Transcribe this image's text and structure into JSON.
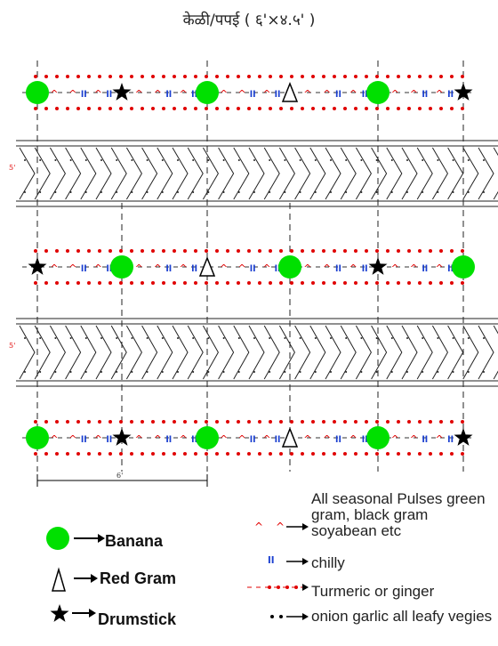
{
  "title": "केळी/पपई ( ६'×४.५' )",
  "width_label": "5'",
  "spacing_label": "6'",
  "legend_left": {
    "banana": "Banana",
    "red_gram": "Red Gram",
    "drumstick": "Drumstick"
  },
  "legend_right": {
    "pulses": "All seasonal Pulses green gram, black gram soyabean etc",
    "chilly": "chilly",
    "turmeric": "Turmeric or ginger",
    "onion": "onion garlic all leafy vegies"
  },
  "colors": {
    "banana": "#00e000",
    "dots": "#e00000",
    "chilly": "#1a3fd0",
    "pulses": "#e00000"
  },
  "rows": [
    [
      "banana",
      "drumstick",
      "banana",
      "red_gram",
      "banana",
      "drumstick"
    ],
    [
      "drumstick",
      "banana",
      "red_gram",
      "banana",
      "drumstick",
      "banana"
    ],
    [
      "banana",
      "drumstick",
      "banana",
      "red_gram",
      "banana",
      "drumstick"
    ]
  ]
}
